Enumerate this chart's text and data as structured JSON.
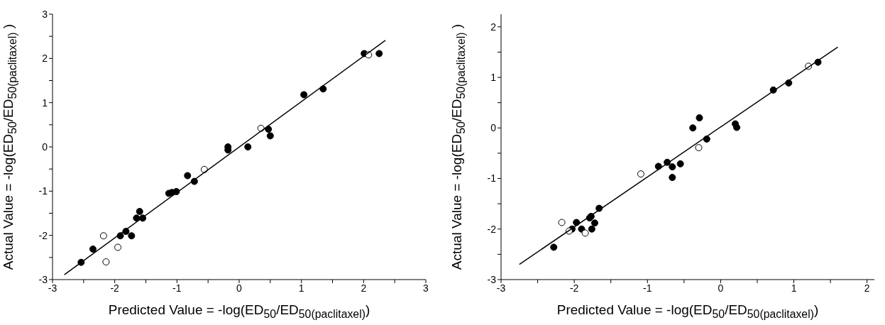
{
  "chart_data": [
    {
      "type": "scatter",
      "xlabel": "Predicted Value = -log(ED$_{50}$/ED$_{50(paclitaxel)}$)",
      "ylabel": "Actual Value = -log(ED$_{50}$/ED$_{50(paclitaxel)}$ )",
      "marker": "circle",
      "xlim": [
        -3,
        3
      ],
      "ylim": [
        -3,
        3
      ],
      "xticks": [
        -3,
        {
          "value": -2.5,
          "label": null
        },
        -2,
        {
          "value": -1.5,
          "label": null
        },
        -1,
        {
          "value": -0.5,
          "label": null
        },
        0,
        {
          "value": 0.5,
          "label": null
        },
        1,
        {
          "value": 1.5,
          "label": null
        },
        2,
        {
          "value": 2.5,
          "label": null
        },
        3
      ],
      "yticks": [
        -3,
        {
          "value": -2.5,
          "label": null
        },
        -2,
        {
          "value": -1.5,
          "label": null
        },
        -1,
        {
          "value": -0.5,
          "label": null
        },
        0,
        {
          "value": 0.5,
          "label": null
        },
        1,
        {
          "value": 1.5,
          "label": null
        },
        2,
        {
          "value": 2.5,
          "label": null
        },
        3
      ],
      "series": [
        {
          "color": "#000000",
          "x": [
            -2.54,
            -2.35,
            -1.91,
            -1.82,
            -1.73,
            -1.65,
            -1.6,
            -1.55,
            -1.13,
            -1.08,
            -1.01,
            -0.83,
            -0.72,
            -0.18,
            -0.18,
            0.14,
            0.47,
            0.5,
            1.04,
            1.35,
            2.01,
            2.25
          ],
          "values": [
            -2.61,
            -2.31,
            -2.01,
            -1.91,
            -2.01,
            -1.61,
            -1.46,
            -1.61,
            -1.05,
            -1.03,
            -1.01,
            -0.65,
            -0.78,
            0.0,
            -0.07,
            0.0,
            0.4,
            0.25,
            1.18,
            1.31,
            2.11,
            2.11
          ]
        },
        {
          "color": "#ffffff",
          "x": [
            -2.18,
            -2.14,
            -1.95,
            -0.56,
            0.35,
            2.08
          ],
          "values": [
            -2.01,
            -2.6,
            -2.27,
            -0.51,
            0.42,
            2.08
          ]
        },
        {
          "type": "line",
          "color": "#000000",
          "line_style": "solid",
          "marker": "none",
          "x": [
            -2.81,
            2.35
          ],
          "values": [
            -2.89,
            2.41
          ]
        }
      ]
    },
    {
      "type": "scatter",
      "xlabel": "Predicted Value = -log(ED$_{50}$/ED$_{50(paclitaxel)}$)",
      "ylabel": "Actual Value = -log(ED$_{50}$/ED$_{50(paclitaxel)}$ )",
      "marker": "circle",
      "xlim": [
        -3,
        2.1
      ],
      "ylim": [
        -3,
        2.25
      ],
      "xticks": [
        -3,
        {
          "value": -2.5,
          "label": null
        },
        -2,
        {
          "value": -1.5,
          "label": null
        },
        -1,
        {
          "value": -0.5,
          "label": null
        },
        0,
        {
          "value": 0.5,
          "label": null
        },
        1,
        {
          "value": 1.5,
          "label": null
        },
        2
      ],
      "yticks": [
        -3,
        {
          "value": -2.5,
          "label": null
        },
        -2,
        {
          "value": -1.5,
          "label": null
        },
        -1,
        {
          "value": -0.5,
          "label": null
        },
        0,
        {
          "value": 0.5,
          "label": null
        },
        1,
        {
          "value": 1.5,
          "label": null
        },
        2
      ],
      "series": [
        {
          "color": "#000000",
          "x": [
            -2.28,
            -2.03,
            -1.97,
            -1.9,
            -1.79,
            -1.77,
            -1.76,
            -1.72,
            -1.66,
            -0.85,
            -0.73,
            -0.66,
            -0.66,
            -0.55,
            -0.38,
            -0.29,
            -0.19,
            0.2,
            0.22,
            0.72,
            0.93,
            1.33
          ],
          "values": [
            -2.36,
            -2.0,
            -1.87,
            -2.0,
            -1.78,
            -1.75,
            -2.0,
            -1.88,
            -1.59,
            -0.76,
            -0.68,
            -0.77,
            -0.98,
            -0.71,
            0.0,
            0.2,
            -0.22,
            0.08,
            0.01,
            0.75,
            0.89,
            1.3
          ]
        },
        {
          "color": "#ffffff",
          "x": [
            -2.17,
            -2.07,
            -1.85,
            -1.09,
            -0.3,
            1.2
          ],
          "values": [
            -1.87,
            -2.04,
            -2.08,
            -0.91,
            -0.39,
            1.22
          ]
        },
        {
          "type": "line",
          "color": "#000000",
          "line_style": "solid",
          "marker": "none",
          "x": [
            -2.75,
            1.6
          ],
          "values": [
            -2.7,
            1.6
          ]
        }
      ]
    }
  ]
}
